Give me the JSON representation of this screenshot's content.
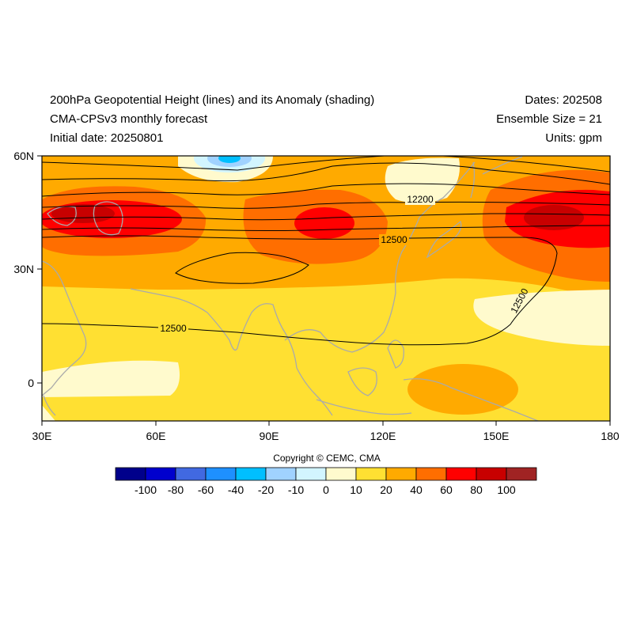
{
  "header": {
    "title": "200hPa Geopotential Height (lines) and its Anomaly (shading)",
    "model": "CMA-CPSv3 monthly forecast",
    "initial_date": "Initial date: 20250801",
    "dates": "Dates: 202508",
    "ensemble": "Ensemble Size = 21",
    "units": "Units: gpm"
  },
  "map": {
    "lon_ticks": [
      "30E",
      "60E",
      "90E",
      "120E",
      "150E",
      "180"
    ],
    "lat_ticks": [
      "60N",
      "30N",
      "0"
    ],
    "lon_range": [
      30,
      180
    ],
    "lat_range": [
      -10,
      60
    ],
    "contour_labels": [
      "12200",
      "12500",
      "12500",
      "12500"
    ]
  },
  "copyright": "Copyright © CEMC, CMA",
  "colorbar": {
    "colors": [
      "#00008b",
      "#0000cd",
      "#4169e1",
      "#1e90ff",
      "#00bfff",
      "#a0d2ff",
      "#d2f5ff",
      "#fffacd",
      "#ffe032",
      "#ffaa00",
      "#ff6e00",
      "#ff0000",
      "#c80000",
      "#a02323"
    ],
    "labels": [
      "-100",
      "-80",
      "-60",
      "-40",
      "-20",
      "-10",
      "0",
      "10",
      "20",
      "40",
      "60",
      "80",
      "100"
    ]
  }
}
